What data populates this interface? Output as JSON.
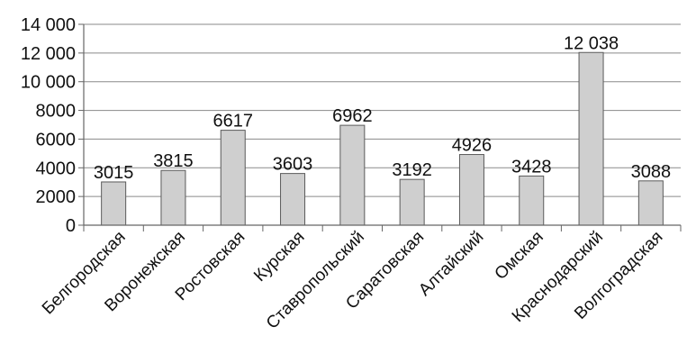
{
  "chart_data": {
    "type": "bar",
    "title": "",
    "xlabel": "",
    "ylabel": "",
    "categories": [
      "Белгородская",
      "Воронежская",
      "Ростовская",
      "Курская",
      "Ставропольский",
      "Саратовская",
      "Алтайский",
      "Омская",
      "Краснодарский",
      "Волгоградская"
    ],
    "values": [
      3015,
      3815,
      6617,
      3603,
      6962,
      3192,
      4926,
      3428,
      12038,
      3088
    ],
    "value_labels": [
      "3015",
      "3815",
      "6617",
      "3603",
      "6962",
      "3192",
      "4926",
      "3428",
      "12 038",
      "3088"
    ],
    "ylim": [
      0,
      14000
    ],
    "y_ticks": [
      0,
      2000,
      4000,
      6000,
      8000,
      10000,
      12000,
      14000
    ],
    "y_tick_labels": [
      "0",
      "2000",
      "4000",
      "6000",
      "8000",
      "10 000",
      "12 000",
      "14 000"
    ],
    "grid": true,
    "legend": "none",
    "colors": {
      "bar_fill": "#cfcfcf",
      "bar_stroke": "#5a5a5a",
      "grid": "#8a8a8a",
      "axis": "#666666",
      "text": "#111111"
    }
  }
}
